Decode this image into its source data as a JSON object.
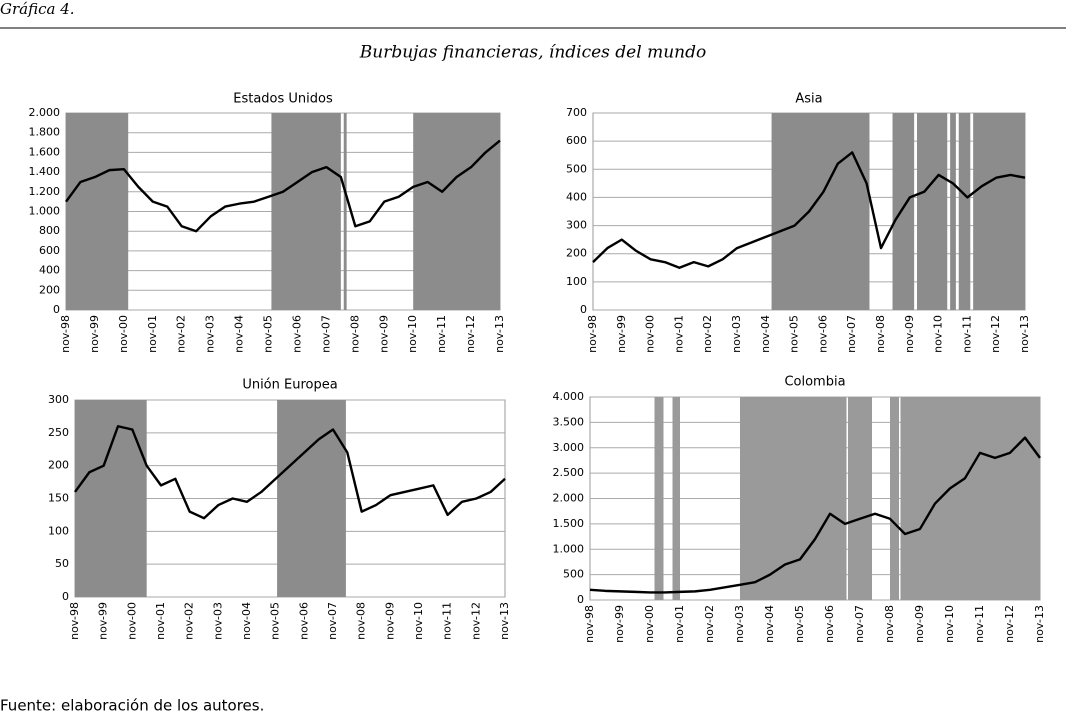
{
  "header": "Gráfica 4.",
  "title": "Burbujas financieras, índices del mundo",
  "source": "Fuente: elaboración de los autores.",
  "chart_data": [
    {
      "type": "line",
      "title": "Estados Unidos",
      "color": "#000000",
      "shade_color": "#8c8c8c",
      "grid": true,
      "categories": [
        "nov-98",
        null,
        "nov-99",
        null,
        "nov-00",
        null,
        "nov-01",
        null,
        "nov-02",
        null,
        "nov-03",
        null,
        "nov-04",
        null,
        "nov-05",
        null,
        "nov-06",
        null,
        "nov-07",
        null,
        "nov-08",
        null,
        "nov-09",
        null,
        "nov-10",
        null,
        "nov-11",
        null,
        "nov-12",
        null,
        "nov-13"
      ],
      "values": [
        1100,
        1300,
        1350,
        1420,
        1430,
        1250,
        1100,
        1050,
        850,
        800,
        950,
        1050,
        1080,
        1100,
        1150,
        1200,
        1300,
        1400,
        1450,
        1350,
        850,
        900,
        1100,
        1150,
        1250,
        1300,
        1200,
        1350,
        1450,
        1600,
        1720
      ],
      "shaded": [
        [
          0,
          4.3
        ],
        [
          14.2,
          19.0
        ],
        [
          19.2,
          19.4
        ],
        [
          24.0,
          30
        ]
      ],
      "ylim": [
        0,
        2000
      ],
      "yticks": [
        0,
        200,
        400,
        600,
        800,
        {
          "value": 1000,
          "label": "1.000"
        },
        {
          "value": 1200,
          "label": "1.200"
        },
        {
          "value": 1400,
          "label": "1.400"
        },
        {
          "value": 1600,
          "label": "1.600"
        },
        {
          "value": 1800,
          "label": "1.800"
        },
        {
          "value": 2000,
          "label": "2.000"
        }
      ]
    },
    {
      "type": "line",
      "title": "Asia",
      "color": "#000000",
      "shade_color": "#8c8c8c",
      "grid": true,
      "categories": [
        "nov-98",
        null,
        "nov-99",
        null,
        "nov-00",
        null,
        "nov-01",
        null,
        "nov-02",
        null,
        "nov-03",
        null,
        "nov-04",
        null,
        "nov-05",
        null,
        "nov-06",
        null,
        "nov-07",
        null,
        "nov-08",
        null,
        "nov-09",
        null,
        "nov-10",
        null,
        "nov-11",
        null,
        "nov-12",
        null,
        "nov-13"
      ],
      "values": [
        170,
        220,
        250,
        210,
        180,
        170,
        150,
        170,
        155,
        180,
        220,
        240,
        260,
        280,
        300,
        350,
        420,
        520,
        560,
        450,
        220,
        320,
        400,
        420,
        480,
        450,
        400,
        440,
        470,
        480,
        470
      ],
      "shaded": [
        [
          12.4,
          19.2
        ],
        [
          20.8,
          22.3
        ],
        [
          22.5,
          24.6
        ],
        [
          24.8,
          25.2
        ],
        [
          25.4,
          26.2
        ],
        [
          26.4,
          30
        ]
      ],
      "ylim": [
        0,
        700
      ],
      "yticks": [
        0,
        100,
        200,
        300,
        400,
        500,
        600,
        700
      ]
    },
    {
      "type": "line",
      "title": "Unión Europea",
      "color": "#000000",
      "shade_color": "#8c8c8c",
      "grid": true,
      "categories": [
        "nov-98",
        null,
        "nov-99",
        null,
        "nov-00",
        null,
        "nov-01",
        null,
        "nov-02",
        null,
        "nov-03",
        null,
        "nov-04",
        null,
        "nov-05",
        null,
        "nov-06",
        null,
        "nov-07",
        null,
        "nov-08",
        null,
        "nov-09",
        null,
        "nov-10",
        null,
        "nov-11",
        null,
        "nov-12",
        null,
        "nov-13"
      ],
      "values": [
        160,
        190,
        200,
        260,
        255,
        200,
        170,
        180,
        130,
        120,
        140,
        150,
        145,
        160,
        180,
        200,
        220,
        240,
        255,
        220,
        130,
        140,
        155,
        160,
        165,
        170,
        125,
        145,
        150,
        160,
        180
      ],
      "shaded": [
        [
          0,
          5.0
        ],
        [
          14.1,
          18.9
        ]
      ],
      "ylim": [
        0,
        300
      ],
      "yticks": [
        0,
        50,
        100,
        150,
        200,
        250,
        300
      ]
    },
    {
      "type": "line",
      "title": "Colombia",
      "color": "#000000",
      "shade_color": "#9a9a9a",
      "grid": true,
      "categories": [
        "nov-98",
        null,
        "nov-99",
        null,
        "nov-00",
        null,
        "nov-01",
        null,
        "nov-02",
        null,
        "nov-03",
        null,
        "nov-04",
        null,
        "nov-05",
        null,
        "nov-06",
        null,
        "nov-07",
        null,
        "nov-08",
        null,
        "nov-09",
        null,
        "nov-10",
        null,
        "nov-11",
        null,
        "nov-12",
        null,
        "nov-13"
      ],
      "values": [
        200,
        180,
        170,
        160,
        150,
        150,
        160,
        170,
        200,
        250,
        300,
        350,
        500,
        700,
        800,
        1200,
        1700,
        1500,
        1600,
        1700,
        1600,
        1300,
        1400,
        1900,
        2200,
        2400,
        2900,
        2800,
        2900,
        3200,
        2800
      ],
      "shaded": [
        [
          4.3,
          4.9
        ],
        [
          5.5,
          6.0
        ],
        [
          10.0,
          17.1
        ],
        [
          17.2,
          18.8
        ],
        [
          20.0,
          20.6
        ],
        [
          20.7,
          30
        ]
      ],
      "ylim": [
        0,
        4000
      ],
      "yticks": [
        0,
        500,
        {
          "value": 1000,
          "label": "1.000"
        },
        {
          "value": 1500,
          "label": "1.500"
        },
        {
          "value": 2000,
          "label": "2.000"
        },
        {
          "value": 2500,
          "label": "2.500"
        },
        {
          "value": 3000,
          "label": "3.000"
        },
        {
          "value": 3500,
          "label": "3.500"
        },
        {
          "value": 4000,
          "label": "4.000"
        }
      ]
    }
  ]
}
